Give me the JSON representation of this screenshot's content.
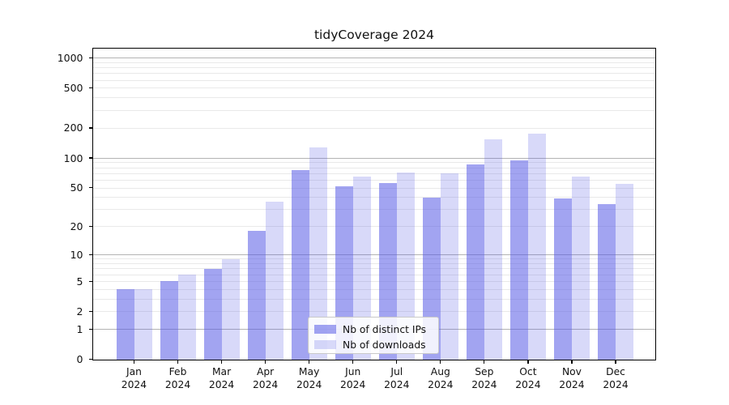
{
  "title": "tidyCoverage 2024",
  "colors": {
    "bar_distinct_ips": "rgba(85, 90, 230, 0.55)",
    "bar_downloads": "rgba(85, 90, 230, 0.23)",
    "grid_major": "#b3b3b3",
    "grid_minor": "#e9e9e9",
    "axis": "#000000"
  },
  "chart_data": {
    "type": "bar",
    "title": "tidyCoverage 2024",
    "xlabel": "",
    "ylabel": "",
    "scale": "log1p",
    "grid": true,
    "legend_position": "bottom-center",
    "categories": [
      "Jan",
      "Feb",
      "Mar",
      "Apr",
      "May",
      "Jun",
      "Jul",
      "Aug",
      "Sep",
      "Oct",
      "Nov",
      "Dec"
    ],
    "year": "2024",
    "yticks": [
      0,
      1,
      2,
      5,
      10,
      20,
      50,
      100,
      200,
      500,
      1000
    ],
    "minor_gridlines": [
      2,
      3,
      4,
      5,
      6,
      7,
      8,
      9,
      20,
      30,
      40,
      50,
      60,
      70,
      80,
      90,
      200,
      300,
      400,
      500,
      600,
      700,
      800,
      900
    ],
    "major_gridlines": [
      1,
      10,
      100,
      1000
    ],
    "ylim": [
      0,
      1100
    ],
    "series": [
      {
        "name": "Nb of distinct IPs",
        "color": "rgba(85, 90, 230, 0.55)",
        "values": [
          4,
          5,
          7,
          18,
          76,
          52,
          56,
          40,
          87,
          95,
          39,
          34
        ]
      },
      {
        "name": "Nb of downloads",
        "color": "rgba(85, 90, 230, 0.23)",
        "values": [
          4,
          6,
          9,
          36,
          128,
          65,
          72,
          70,
          155,
          175,
          65,
          55
        ]
      }
    ]
  }
}
